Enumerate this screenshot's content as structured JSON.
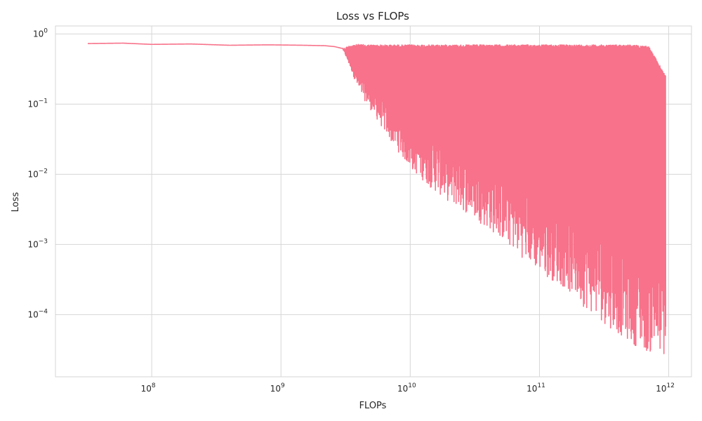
{
  "chart_data": {
    "type": "line",
    "title": "Loss vs FLOPs",
    "xlabel": "FLOPs",
    "ylabel": "Loss",
    "xscale": "log",
    "yscale": "log",
    "xlim": [
      18000000.0,
      1500000000000.0
    ],
    "ylim": [
      1.3e-05,
      1.3
    ],
    "x_ticks": [
      {
        "value": 100000000.0,
        "label": "10^8",
        "base": "10",
        "exp": "8"
      },
      {
        "value": 1000000000.0,
        "label": "10^9",
        "base": "10",
        "exp": "9"
      },
      {
        "value": 10000000000.0,
        "label": "10^10",
        "base": "10",
        "exp": "10"
      },
      {
        "value": 100000000000.0,
        "label": "10^11",
        "base": "10",
        "exp": "11"
      },
      {
        "value": 1000000000000.0,
        "label": "10^12",
        "base": "10",
        "exp": "12"
      }
    ],
    "y_ticks": [
      {
        "value": 1,
        "label": "10^0",
        "base": "10",
        "exp": "0"
      },
      {
        "value": 0.1,
        "label": "10^-1",
        "base": "10",
        "exp": "−1"
      },
      {
        "value": 0.01,
        "label": "10^-2",
        "base": "10",
        "exp": "−2"
      },
      {
        "value": 0.001,
        "label": "10^-3",
        "base": "10",
        "exp": "−3"
      },
      {
        "value": 0.0001,
        "label": "10^-4",
        "base": "10",
        "exp": "−4"
      }
    ],
    "grid": true,
    "colors": {
      "series": "#f7728a",
      "grid": "#d6d6d6",
      "text": "#262626"
    },
    "series": [
      {
        "style": "oscillating",
        "x": [
          32000000.0,
          60000000.0,
          100000000.0,
          200000000.0,
          400000000.0,
          800000000.0,
          1500000000.0,
          2200000000.0,
          2600000000.0,
          3000000000.0,
          3500000000.0,
          4000000000.0,
          5000000000.0,
          7000000000.0,
          10000000000.0,
          15000000000.0,
          20000000000.0,
          30000000000.0,
          50000000000.0,
          70000000000.0,
          100000000000.0,
          150000000000.0,
          200000000000.0,
          300000000000.0,
          500000000000.0,
          700000000000.0,
          950000000000.0
        ],
        "upper": [
          0.73,
          0.74,
          0.71,
          0.72,
          0.69,
          0.7,
          0.69,
          0.68,
          0.66,
          0.62,
          0.7,
          0.71,
          0.7,
          0.7,
          0.7,
          0.7,
          0.7,
          0.7,
          0.7,
          0.7,
          0.7,
          0.7,
          0.7,
          0.7,
          0.7,
          0.67,
          0.25
        ],
        "lower": [
          0.73,
          0.74,
          0.71,
          0.72,
          0.69,
          0.7,
          0.69,
          0.68,
          0.66,
          0.62,
          0.3,
          0.15,
          0.08,
          0.03,
          0.012,
          0.006,
          0.004,
          0.0025,
          0.0012,
          0.0007,
          0.0004,
          0.00025,
          0.00015,
          8e-05,
          4e-05,
          2.8e-05,
          2.3e-05
        ]
      }
    ]
  }
}
